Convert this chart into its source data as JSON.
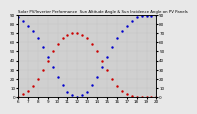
{
  "title": "Solar PV/Inverter Performance  Sun Altitude Angle & Sun Incidence Angle on PV Panels",
  "background_color": "#e8e8e8",
  "plot_bg_color": "#d0d0d0",
  "grid_color": "#b0b0b0",
  "blue_color": "#0000cc",
  "red_color": "#cc0000",
  "x_start": 6,
  "x_end": 20,
  "x_ticks": [
    6,
    7,
    8,
    9,
    10,
    11,
    12,
    13,
    14,
    15,
    16,
    17,
    18,
    19,
    20
  ],
  "ylim_left": [
    0,
    90
  ],
  "ylim_right": [
    0,
    90
  ],
  "y_ticks_left": [
    0,
    10,
    20,
    30,
    40,
    50,
    60,
    70,
    80,
    90
  ],
  "y_ticks_right": [
    0,
    10,
    20,
    30,
    40,
    50,
    60,
    70,
    80,
    90
  ],
  "blue_x": [
    6,
    6.5,
    7,
    7.5,
    8,
    8.5,
    9,
    9.5,
    10,
    10.5,
    11,
    11.5,
    12,
    12.5,
    13,
    13.5,
    14,
    14.5,
    15,
    15.5,
    16,
    16.5,
    17,
    17.5,
    18,
    18.5,
    19,
    19.5,
    20
  ],
  "blue_y": [
    87,
    83,
    78,
    72,
    64,
    55,
    44,
    33,
    22,
    13,
    6,
    2,
    0,
    2,
    6,
    13,
    22,
    33,
    44,
    55,
    64,
    72,
    78,
    83,
    87,
    88,
    89,
    89,
    90
  ],
  "red_x": [
    6,
    6.5,
    7,
    7.5,
    8,
    8.5,
    9,
    9.5,
    10,
    10.5,
    11,
    11.5,
    12,
    12.5,
    13,
    13.5,
    14,
    14.5,
    15,
    15.5,
    16,
    16.5,
    17,
    17.5,
    18,
    18.5,
    19,
    19.5,
    20
  ],
  "red_y": [
    0,
    3,
    7,
    12,
    20,
    30,
    40,
    50,
    58,
    64,
    68,
    70,
    70,
    68,
    64,
    58,
    50,
    40,
    30,
    20,
    12,
    7,
    3,
    1,
    0,
    0,
    0,
    0,
    0
  ],
  "markersize": 1.5,
  "title_fontsize": 2.8,
  "tick_fontsize": 3.0
}
